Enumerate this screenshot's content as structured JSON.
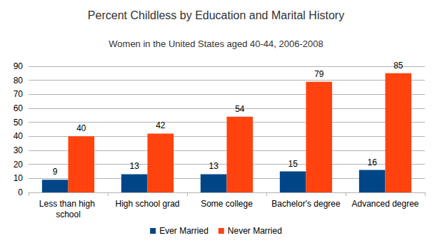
{
  "chart_data": {
    "type": "bar",
    "title": "Percent Childless by Education and Marital History",
    "subtitle": "Women in the United States aged 40-44, 2006-2008",
    "categories": [
      "Less than high school",
      "High school grad",
      "Some college",
      "Bachelor's degree",
      "Advanced degree"
    ],
    "series": [
      {
        "name": "Ever Married",
        "color": "#004586",
        "values": [
          9,
          13,
          13,
          15,
          16
        ]
      },
      {
        "name": "Never Married",
        "color": "#ff420e",
        "values": [
          40,
          42,
          54,
          79,
          85
        ]
      }
    ],
    "ylim": [
      0,
      90
    ],
    "yticks": [
      0,
      10,
      20,
      30,
      40,
      50,
      60,
      70,
      80,
      90
    ],
    "grid": true,
    "legend": "bottom",
    "data_labels": true
  }
}
